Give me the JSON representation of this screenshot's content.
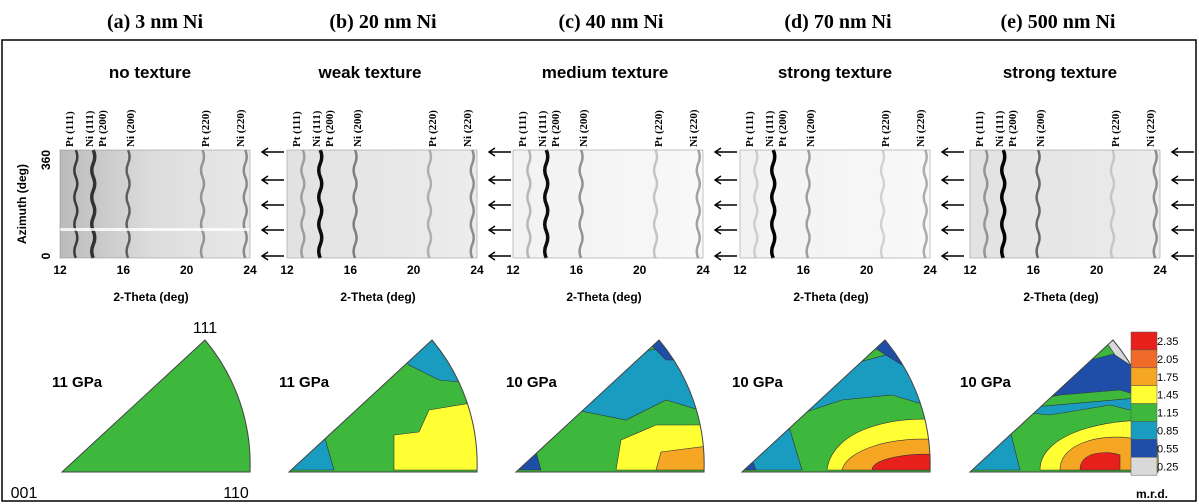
{
  "panels": [
    {
      "label": "(a) 3 nm Ni",
      "texture": "no texture",
      "pressure": "11 GPa"
    },
    {
      "label": "(b) 20 nm Ni",
      "texture": "weak texture",
      "pressure": "11 GPa"
    },
    {
      "label": "(c) 40 nm Ni",
      "texture": "medium texture",
      "pressure": "10 GPa"
    },
    {
      "label": "(d) 70 nm Ni",
      "texture": "strong texture",
      "pressure": "10 GPa"
    },
    {
      "label": "(e) 500 nm Ni",
      "texture": "strong texture",
      "pressure": "10 GPa"
    }
  ],
  "peaks": [
    "Pt (111)",
    "Ni (111)",
    "Pt (200)",
    "Ni (200)",
    "Pt (220)",
    "Ni (220)"
  ],
  "x_ticks": [
    "12",
    "16",
    "20",
    "24"
  ],
  "x_label": "2-Theta (deg)",
  "y_label": "Azimuth (deg)",
  "y_ticks": [
    "360",
    "0"
  ],
  "pole_labels": {
    "top": "111",
    "bottom_left": "001",
    "bottom_right": "110"
  },
  "colorbar": {
    "ticks": [
      "2.35",
      "2.05",
      "1.75",
      "1.45",
      "1.15",
      "0.85",
      "0.55",
      "0.25"
    ],
    "unit": "m.r.d."
  }
}
